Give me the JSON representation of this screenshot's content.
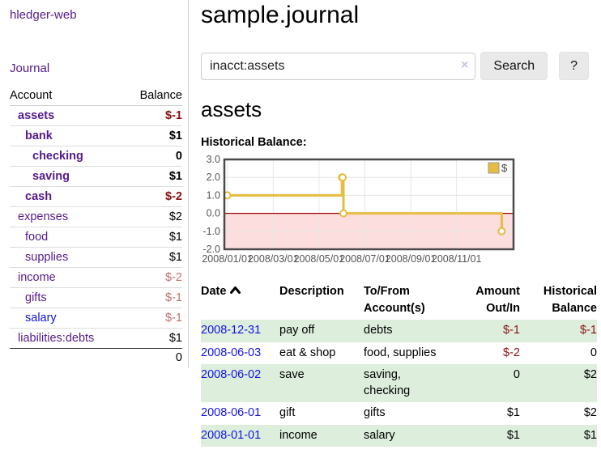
{
  "app": {
    "brand": "hledger-web"
  },
  "sidebar": {
    "journal_label": "Journal",
    "table": {
      "account_header": "Account",
      "balance_header": "Balance",
      "rows": [
        {
          "account": "assets",
          "balance": "$-1",
          "depth": 1,
          "bold": true,
          "neg": "strong",
          "link": "purple"
        },
        {
          "account": "bank",
          "balance": "$1",
          "depth": 2,
          "bold": true,
          "neg": "none",
          "link": "purple"
        },
        {
          "account": "checking",
          "balance": "0",
          "depth": 3,
          "bold": true,
          "neg": "none",
          "link": "purple"
        },
        {
          "account": "saving",
          "balance": "$1",
          "depth": 3,
          "bold": true,
          "neg": "none",
          "link": "purple"
        },
        {
          "account": "cash",
          "balance": "$-2",
          "depth": 2,
          "bold": true,
          "neg": "strong",
          "link": "purple"
        },
        {
          "account": "expenses",
          "balance": "$2",
          "depth": 1,
          "bold": false,
          "neg": "none",
          "link": "purple"
        },
        {
          "account": "food",
          "balance": "$1",
          "depth": 2,
          "bold": false,
          "neg": "none",
          "link": "purple"
        },
        {
          "account": "supplies",
          "balance": "$1",
          "depth": 2,
          "bold": false,
          "neg": "none",
          "link": "purple"
        },
        {
          "account": "income",
          "balance": "$-2",
          "depth": 1,
          "bold": false,
          "neg": "soft",
          "link": "purple"
        },
        {
          "account": "gifts",
          "balance": "$-1",
          "depth": 2,
          "bold": false,
          "neg": "soft",
          "link": "purple"
        },
        {
          "account": "salary",
          "balance": "$-1",
          "depth": 2,
          "bold": false,
          "neg": "soft",
          "link": "blue"
        },
        {
          "account": "liabilities:debts",
          "balance": "$1",
          "depth": 1,
          "bold": false,
          "neg": "none",
          "link": "purple"
        }
      ],
      "total": "0"
    }
  },
  "header": {
    "title": "sample.journal"
  },
  "search": {
    "value": "inacct:assets",
    "clear_icon": "×",
    "button_label": "Search",
    "help_label": "?"
  },
  "account_page": {
    "title": "assets",
    "chart_heading": "Historical Balance:"
  },
  "chart_data": {
    "type": "line",
    "title": "Historical Balance",
    "series": [
      {
        "name": "$",
        "step": true,
        "points": [
          [
            "2008/01/01",
            1
          ],
          [
            "2008/06/01",
            2
          ],
          [
            "2008/06/02",
            2
          ],
          [
            "2008/06/03",
            0
          ],
          [
            "2008/12/31",
            -1
          ]
        ]
      }
    ],
    "x_tick_dates": [
      "2008/01/01",
      "2008/03/01",
      "2008/05/01",
      "2008/07/01",
      "2008/09/01",
      "2008/11/01"
    ],
    "x_tick_labels": [
      "2008/01/01",
      "2008/03/01",
      "2008/05/01",
      "2008/07/01",
      "2008/09/01",
      "2008/11/01"
    ],
    "y_ticks": [
      "3.0",
      "2.0",
      "1.0",
      "0.0",
      "-1.0",
      "-2.0"
    ],
    "ylim": [
      -2,
      3
    ],
    "xlim_dates": [
      "2007/12/28",
      "2009/01/16"
    ],
    "grid": true,
    "legend": {
      "label": "$",
      "position": "top-right"
    },
    "colors": {
      "series": "#e8bc3f",
      "marker_fill": "#ffffff",
      "negative_fill": "#fcdede",
      "zero_line": "#a00000",
      "grid": "#e6e6e6",
      "border": "#4a4a4a",
      "tick_text": "#545454",
      "legend_box_stroke": "#999999"
    }
  },
  "register": {
    "columns": [
      {
        "line1": "Date"
      },
      {
        "line1": "Description"
      },
      {
        "line1": "To/From",
        "line2": "Account(s)"
      },
      {
        "line1": "Amount",
        "line2": "Out/In"
      },
      {
        "line1": "Historical",
        "line2": "Balance"
      }
    ],
    "rows": [
      {
        "date": "2008-12-31",
        "description": "pay off",
        "accounts": "debts",
        "amount": "$-1",
        "balance": "$-1",
        "amount_neg": true,
        "balance_neg": true
      },
      {
        "date": "2008-06-03",
        "description": "eat & shop",
        "accounts": "food, supplies",
        "amount": "$-2",
        "balance": "0",
        "amount_neg": true,
        "balance_neg": false
      },
      {
        "date": "2008-06-02",
        "description": "save",
        "accounts": "saving, checking",
        "amount": "0",
        "balance": "$2",
        "amount_neg": false,
        "balance_neg": false
      },
      {
        "date": "2008-06-01",
        "description": "gift",
        "accounts": "gifts",
        "amount": "$1",
        "balance": "$2",
        "amount_neg": false,
        "balance_neg": false
      },
      {
        "date": "2008-01-01",
        "description": "income",
        "accounts": "salary",
        "amount": "$1",
        "balance": "$1",
        "amount_neg": false,
        "balance_neg": false
      }
    ]
  }
}
